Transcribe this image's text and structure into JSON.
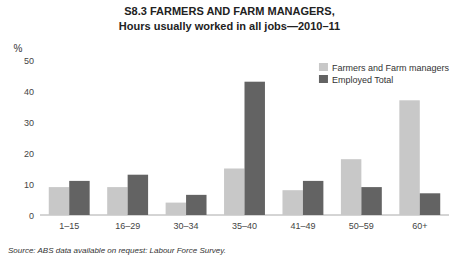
{
  "chart_data": {
    "type": "bar",
    "title": "S8.3   FARMERS AND FARM MANAGERS,",
    "subtitle": "Hours usually worked in all jobs—2010–11",
    "ylabel": "%",
    "categories": [
      "1–15",
      "16–29",
      "30–34",
      "35–40",
      "41–49",
      "50–59",
      "60+"
    ],
    "series": [
      {
        "name": "Farmers and Farm managers",
        "color": "#c8c8c8",
        "values": [
          9,
          9,
          4,
          15,
          8,
          18,
          37
        ]
      },
      {
        "name": "Employed Total",
        "color": "#636363",
        "values": [
          11,
          13,
          6.5,
          43,
          11,
          9,
          7
        ]
      }
    ],
    "ylim": [
      0,
      50
    ],
    "yticks": [
      0,
      10,
      20,
      30,
      40,
      50
    ],
    "grid": false,
    "legend": "upper right",
    "annotations": [
      "Source: ABS data available on request: Labour Force Survey."
    ]
  }
}
